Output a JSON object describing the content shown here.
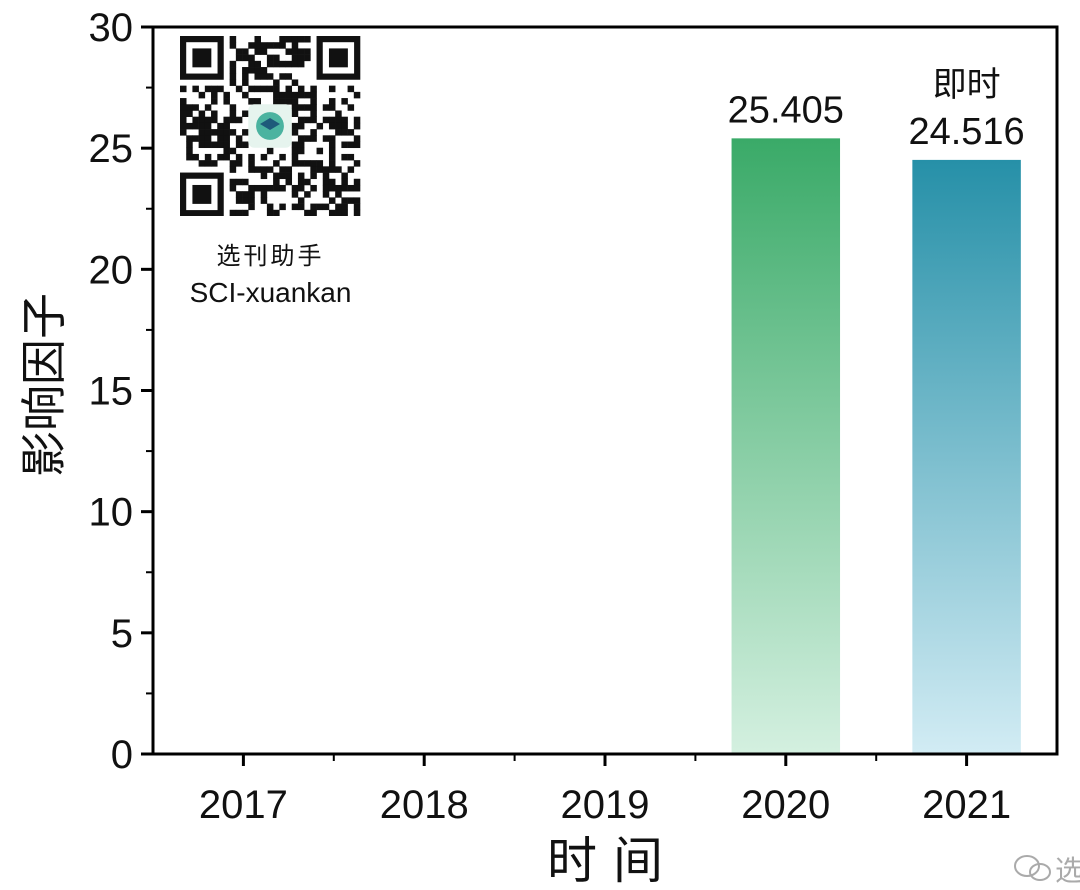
{
  "chart_data": {
    "type": "bar",
    "categories": [
      "2017",
      "2018",
      "2019",
      "2020",
      "2021"
    ],
    "values": [
      null,
      null,
      null,
      25.405,
      24.516
    ],
    "data_labels": [
      "",
      "",
      "",
      "25.405",
      "24.516"
    ],
    "bar_annotations": [
      "",
      "",
      "",
      "",
      "即时"
    ],
    "xlabel": "时 间",
    "ylabel": "影响因子",
    "ylim": [
      0,
      30
    ],
    "yticks": [
      0,
      5,
      10,
      15,
      20,
      25,
      30
    ],
    "grid": false,
    "colors": {
      "2020_top": "#3aaa68",
      "2020_bottom": "#d4f0e0",
      "2021_top": "#2690a8",
      "2021_bottom": "#d2ecf4",
      "axis": "#000000"
    }
  },
  "overlay": {
    "caption_cn": "选刊助手",
    "caption_en": "SCI-xuankan",
    "watermark_text": "选"
  }
}
